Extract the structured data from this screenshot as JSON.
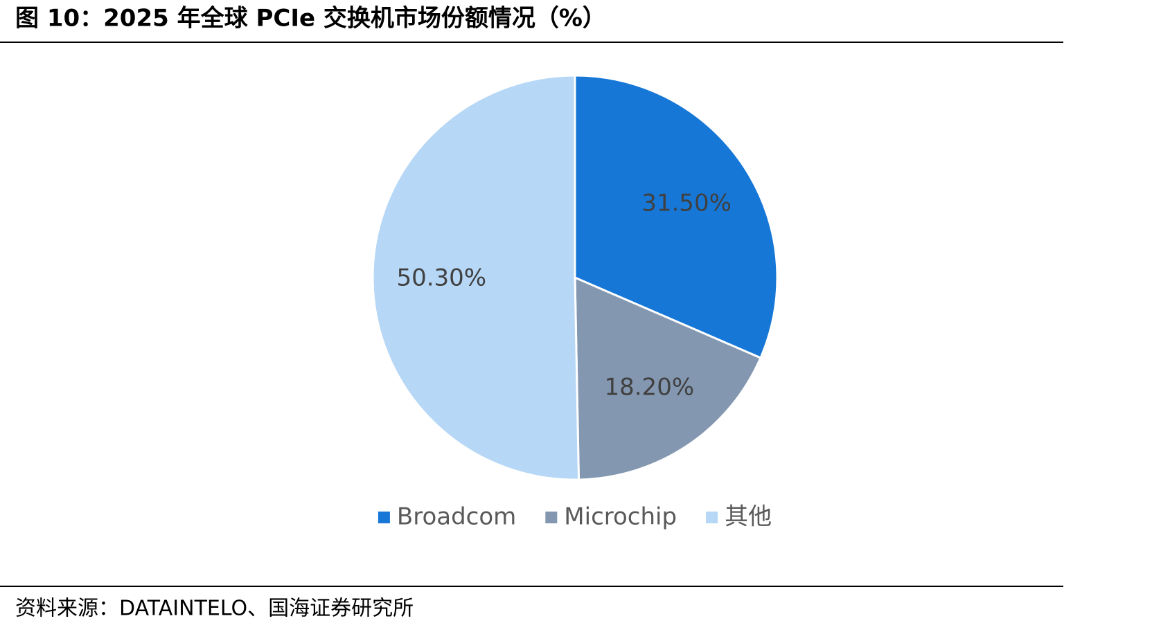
{
  "chart_data": {
    "type": "pie",
    "title": "图 10：2025 年全球 PCIe 交换机市场份额情况（%）",
    "source": "资料来源：DATAINTELO、国海证券研究所",
    "categories": [
      "Broadcom",
      "Microchip",
      "其他"
    ],
    "values": [
      31.5,
      18.2,
      50.3
    ],
    "value_labels": [
      "31.50%",
      "18.20%",
      "50.30%"
    ],
    "colors": [
      "#1677d7",
      "#8497b0",
      "#b6d7f6"
    ],
    "legend": "bottom"
  }
}
